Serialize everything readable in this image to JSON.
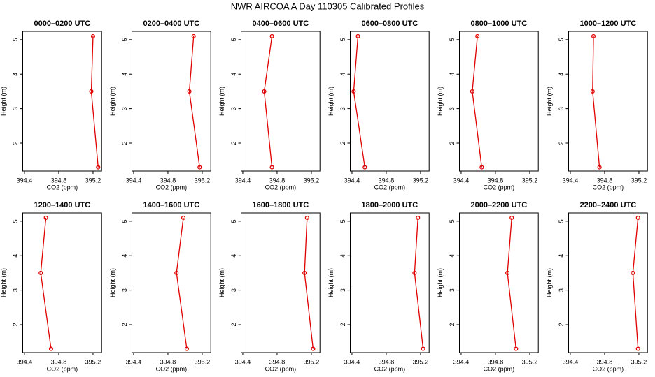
{
  "title": "NWR AIRCOA A  Day 110305  Calibrated Profiles",
  "chart_data": [
    {
      "type": "line",
      "title": "0000–0200 UTC",
      "x_label": "CO2 (ppm)",
      "y_label": "Height (m)",
      "color": "#e00000",
      "x": [
        395.26,
        395.18,
        395.2
      ],
      "values": [
        1.3,
        3.5,
        5.1
      ],
      "xlim": [
        394.38,
        395.3
      ],
      "ylim": [
        1.19,
        5.24
      ],
      "xticks": [
        394.4,
        394.8,
        395.2
      ],
      "yticks": [
        2,
        3,
        4,
        5
      ]
    },
    {
      "type": "line",
      "title": "0200–0400 UTC",
      "x_label": "CO2 (ppm)",
      "y_label": "Height (m)",
      "color": "#e00000",
      "x": [
        395.17,
        395.05,
        395.1
      ],
      "values": [
        1.3,
        3.5,
        5.1
      ],
      "xlim": [
        394.38,
        395.3
      ],
      "ylim": [
        1.19,
        5.24
      ],
      "xticks": [
        394.4,
        394.8,
        395.2
      ],
      "yticks": [
        2,
        3,
        4,
        5
      ]
    },
    {
      "type": "line",
      "title": "0400–0600 UTC",
      "x_label": "CO2 (ppm)",
      "y_label": "Height (m)",
      "color": "#e00000",
      "x": [
        394.74,
        394.65,
        394.74
      ],
      "values": [
        1.3,
        3.5,
        5.1
      ],
      "xlim": [
        394.38,
        395.3
      ],
      "ylim": [
        1.19,
        5.24
      ],
      "xticks": [
        394.4,
        394.8,
        395.2
      ],
      "yticks": [
        2,
        3,
        4,
        5
      ]
    },
    {
      "type": "line",
      "title": "0600–0800 UTC",
      "x_label": "CO2 (ppm)",
      "y_label": "Height (m)",
      "color": "#e00000",
      "x": [
        394.55,
        394.42,
        394.47
      ],
      "values": [
        1.3,
        3.5,
        5.1
      ],
      "xlim": [
        394.38,
        395.3
      ],
      "ylim": [
        1.19,
        5.24
      ],
      "xticks": [
        394.4,
        394.8,
        395.2
      ],
      "yticks": [
        2,
        3,
        4,
        5
      ]
    },
    {
      "type": "line",
      "title": "0800–1000 UTC",
      "x_label": "CO2 (ppm)",
      "y_label": "Height (m)",
      "color": "#e00000",
      "x": [
        394.64,
        394.53,
        394.59
      ],
      "values": [
        1.3,
        3.5,
        5.1
      ],
      "xlim": [
        394.38,
        395.3
      ],
      "ylim": [
        1.19,
        5.24
      ],
      "xticks": [
        394.4,
        394.8,
        395.2
      ],
      "yticks": [
        2,
        3,
        4,
        5
      ]
    },
    {
      "type": "line",
      "title": "1000–1200 UTC",
      "x_label": "CO2 (ppm)",
      "y_label": "Height (m)",
      "color": "#e00000",
      "x": [
        394.74,
        394.66,
        394.67
      ],
      "values": [
        1.3,
        3.5,
        5.1
      ],
      "xlim": [
        394.38,
        395.3
      ],
      "ylim": [
        1.19,
        5.24
      ],
      "xticks": [
        394.4,
        394.8,
        395.2
      ],
      "yticks": [
        2,
        3,
        4,
        5
      ]
    },
    {
      "type": "line",
      "title": "1200–1400 UTC",
      "x_label": "CO2 (ppm)",
      "y_label": "Height (m)",
      "color": "#e00000",
      "x": [
        394.71,
        394.59,
        394.65
      ],
      "values": [
        1.3,
        3.5,
        5.1
      ],
      "xlim": [
        394.38,
        395.3
      ],
      "ylim": [
        1.19,
        5.24
      ],
      "xticks": [
        394.4,
        394.8,
        395.2
      ],
      "yticks": [
        2,
        3,
        4,
        5
      ]
    },
    {
      "type": "line",
      "title": "1400–1600 UTC",
      "x_label": "CO2 (ppm)",
      "y_label": "Height (m)",
      "color": "#e00000",
      "x": [
        395.02,
        394.9,
        394.98
      ],
      "values": [
        1.3,
        3.5,
        5.1
      ],
      "xlim": [
        394.38,
        395.3
      ],
      "ylim": [
        1.19,
        5.24
      ],
      "xticks": [
        394.4,
        394.8,
        395.2
      ],
      "yticks": [
        2,
        3,
        4,
        5
      ]
    },
    {
      "type": "line",
      "title": "1600–1800 UTC",
      "x_label": "CO2 (ppm)",
      "y_label": "Height (m)",
      "color": "#e00000",
      "x": [
        395.22,
        395.12,
        395.15
      ],
      "values": [
        1.3,
        3.5,
        5.1
      ],
      "xlim": [
        394.38,
        395.3
      ],
      "ylim": [
        1.19,
        5.24
      ],
      "xticks": [
        394.4,
        394.8,
        395.2
      ],
      "yticks": [
        2,
        3,
        4,
        5
      ]
    },
    {
      "type": "line",
      "title": "1800–2000 UTC",
      "x_label": "CO2 (ppm)",
      "y_label": "Height (m)",
      "color": "#e00000",
      "x": [
        395.23,
        395.13,
        395.17
      ],
      "values": [
        1.3,
        3.5,
        5.1
      ],
      "xlim": [
        394.38,
        395.3
      ],
      "ylim": [
        1.19,
        5.24
      ],
      "xticks": [
        394.4,
        394.8,
        395.2
      ],
      "yticks": [
        2,
        3,
        4,
        5
      ]
    },
    {
      "type": "line",
      "title": "2000–2200 UTC",
      "x_label": "CO2 (ppm)",
      "y_label": "Height (m)",
      "color": "#e00000",
      "x": [
        395.04,
        394.94,
        394.99
      ],
      "values": [
        1.3,
        3.5,
        5.1
      ],
      "xlim": [
        394.38,
        395.3
      ],
      "ylim": [
        1.19,
        5.24
      ],
      "xticks": [
        394.4,
        394.8,
        395.2
      ],
      "yticks": [
        2,
        3,
        4,
        5
      ]
    },
    {
      "type": "line",
      "title": "2200–2400 UTC",
      "x_label": "CO2 (ppm)",
      "y_label": "Height (m)",
      "color": "#e00000",
      "x": [
        395.19,
        395.13,
        395.19
      ],
      "values": [
        1.3,
        3.5,
        5.1
      ],
      "xlim": [
        394.38,
        395.3
      ],
      "ylim": [
        1.19,
        5.24
      ],
      "xticks": [
        394.4,
        394.8,
        395.2
      ],
      "yticks": [
        2,
        3,
        4,
        5
      ]
    }
  ]
}
